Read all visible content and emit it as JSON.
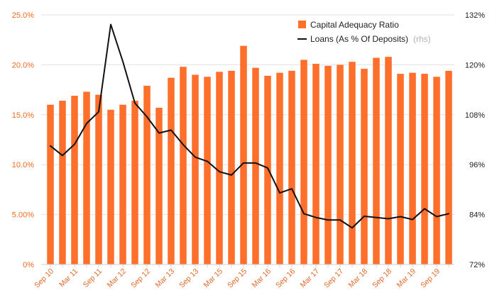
{
  "chart_data": {
    "type": "bar+line",
    "title": "",
    "colors": {
      "bar": "#ff6f2c",
      "line": "#111111",
      "grid": "#e2e2e2",
      "left_axis_text": "#f26a21",
      "right_axis_text": "#222222",
      "x_axis_text": "#e06a2a"
    },
    "y_left": {
      "ylim": [
        0,
        25
      ],
      "ticks": [
        0,
        5,
        10,
        15,
        20,
        25
      ],
      "tick_labels": [
        "0%",
        "5.00%",
        "10.0%",
        "15.0%",
        "20.0%",
        "25.0%"
      ]
    },
    "y_right": {
      "ylim": [
        72,
        132
      ],
      "ticks": [
        72,
        84,
        96,
        108,
        120,
        132
      ],
      "tick_labels": [
        "72%",
        "84%",
        "96%",
        "108%",
        "120%",
        "132%"
      ]
    },
    "x_tick_labels": [
      {
        "index": 0,
        "label": "Sep 10"
      },
      {
        "index": 2,
        "label": "Mar 11"
      },
      {
        "index": 4,
        "label": "Sep 11"
      },
      {
        "index": 6,
        "label": "Mar 12"
      },
      {
        "index": 8,
        "label": "Sep 12"
      },
      {
        "index": 10,
        "label": "Mar 13"
      },
      {
        "index": 12,
        "label": "Sep 13"
      },
      {
        "index": 14,
        "label": "Mar 15"
      },
      {
        "index": 16,
        "label": "Sep 15"
      },
      {
        "index": 18,
        "label": "Mar 16"
      },
      {
        "index": 20,
        "label": "Sep 16"
      },
      {
        "index": 22,
        "label": "Mar 17"
      },
      {
        "index": 24,
        "label": "Sep 17"
      },
      {
        "index": 26,
        "label": "Mar 18"
      },
      {
        "index": 28,
        "label": "Sep 18"
      },
      {
        "index": 30,
        "label": "Mar 19"
      },
      {
        "index": 32,
        "label": "Sep 19"
      }
    ],
    "series": [
      {
        "name": "Capital Adequacy Ratio",
        "type": "bar",
        "axis": "left",
        "values": [
          16.0,
          16.4,
          16.9,
          17.3,
          17.0,
          15.5,
          16.0,
          16.4,
          17.9,
          15.7,
          18.7,
          19.8,
          19.0,
          18.8,
          19.3,
          19.4,
          21.9,
          19.7,
          18.9,
          19.2,
          19.4,
          20.5,
          20.1,
          19.9,
          20.0,
          20.3,
          19.6,
          20.7,
          20.8,
          19.1,
          19.2,
          19.1,
          18.8,
          19.4
        ],
        "legend_label": "Capital Adequacy Ratio"
      },
      {
        "name": "Loans (As % Of Deposits)",
        "type": "line",
        "axis": "right",
        "values": [
          100.5,
          98.2,
          100.9,
          105.9,
          108.7,
          129.7,
          120.8,
          110.8,
          107.5,
          103.6,
          104.3,
          100.8,
          97.8,
          96.8,
          94.3,
          93.5,
          96.4,
          96.4,
          95.2,
          89.2,
          90.2,
          84.2,
          83.3,
          82.7,
          82.7,
          80.8,
          83.6,
          83.3,
          83.0,
          83.5,
          82.8,
          85.4,
          83.5,
          84.2
        ],
        "legend_label": "Loans (As % Of Deposits)",
        "legend_note": "(rhs)"
      }
    ],
    "legend_position": "top-right",
    "grid": true
  }
}
